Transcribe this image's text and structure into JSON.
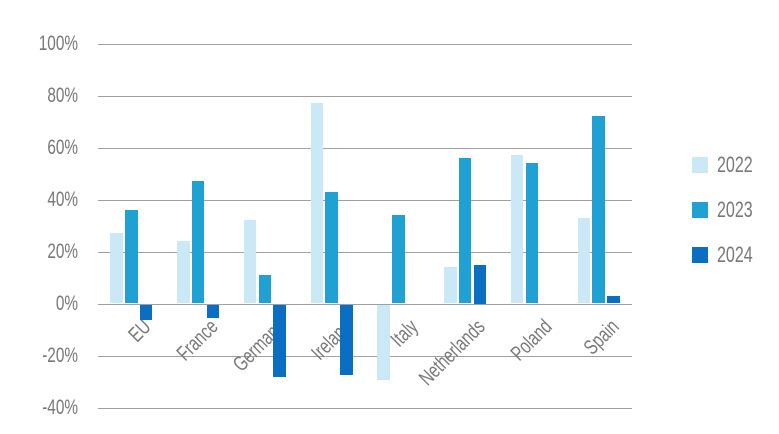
{
  "chart_data": {
    "type": "bar",
    "title": "",
    "xlabel": "",
    "ylabel": "",
    "categories": [
      "EU",
      "France",
      "Germany",
      "Ireland",
      "Italy",
      "Netherlands",
      "Poland",
      "Spain"
    ],
    "series": [
      {
        "name": "2022",
        "color": "#cbe8f6",
        "values": [
          27,
          24,
          32,
          77,
          -29,
          14,
          57,
          33
        ]
      },
      {
        "name": "2023",
        "color": "#1fa1d3",
        "values": [
          36,
          47,
          11,
          43,
          34,
          56,
          54,
          72
        ]
      },
      {
        "name": "2024",
        "color": "#0a6fc2",
        "values": [
          -6,
          -5,
          -28,
          -27,
          null,
          15,
          null,
          3
        ]
      }
    ],
    "ylim": [
      -40,
      100
    ],
    "yticks": [
      {
        "value": 100,
        "label": "100%"
      },
      {
        "value": 80,
        "label": "80%"
      },
      {
        "value": 60,
        "label": "60%"
      },
      {
        "value": 40,
        "label": "40%"
      },
      {
        "value": 20,
        "label": "20%"
      },
      {
        "value": 0,
        "label": "0%"
      },
      {
        "value": -20,
        "label": "-20%"
      },
      {
        "value": -40,
        "label": "-40%"
      }
    ],
    "grid": true,
    "legend_position": "right",
    "value_unit": "%"
  }
}
